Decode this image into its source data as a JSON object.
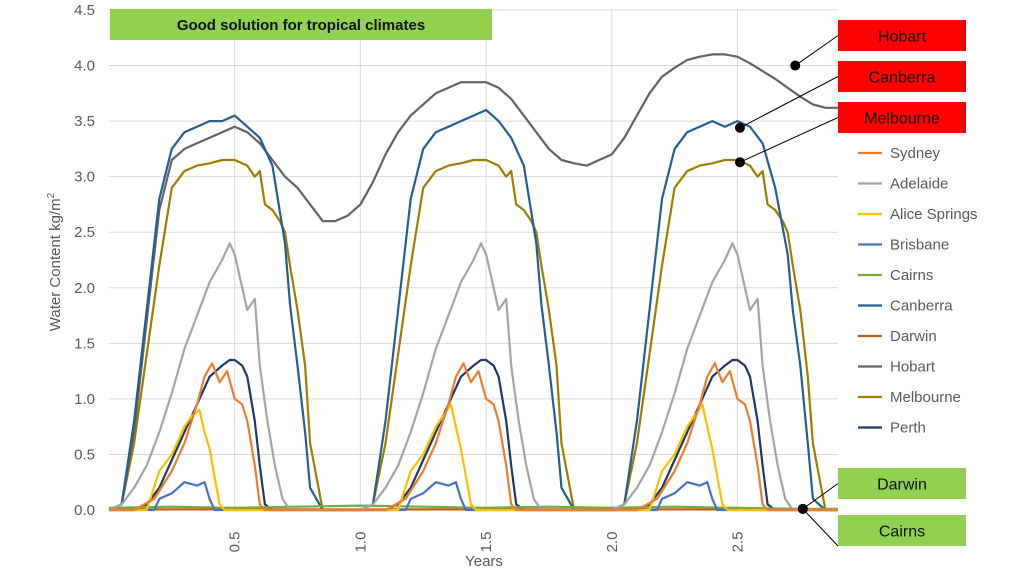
{
  "chart_data": {
    "type": "line",
    "title": "Good solution for tropical climates",
    "xlabel": "Years",
    "ylabel": "Water Content kg/m",
    "ylabel_sup": "2",
    "xlim": [
      0,
      2.9
    ],
    "ylim": [
      0,
      4.5
    ],
    "xticks": [
      "0.5",
      "1.0",
      "1.5",
      "2.0",
      "2.5"
    ],
    "yticks": [
      "0.0",
      "0.5",
      "1.0",
      "1.5",
      "2.0",
      "2.5",
      "3.0",
      "3.5",
      "4.0",
      "4.5"
    ],
    "grid": true,
    "legend_position": "right",
    "series": [
      {
        "name": "Sydney",
        "color": "#ED7D31",
        "x": [
          0.0,
          0.1,
          0.18,
          0.25,
          0.3,
          0.35,
          0.38,
          0.41,
          0.44,
          0.47,
          0.5,
          0.53,
          0.55,
          0.58,
          0.6,
          0.62,
          0.65,
          0.7,
          1.0,
          1.1,
          1.18,
          1.25,
          1.3,
          1.35,
          1.38,
          1.41,
          1.44,
          1.47,
          1.5,
          1.53,
          1.55,
          1.58,
          1.6,
          1.62,
          1.65,
          1.7,
          2.0,
          2.1,
          2.18,
          2.25,
          2.3,
          2.35,
          2.38,
          2.41,
          2.44,
          2.47,
          2.5,
          2.53,
          2.55,
          2.58,
          2.6,
          2.62,
          2.65,
          2.7,
          2.9
        ],
        "y": [
          0,
          0,
          0.1,
          0.35,
          0.6,
          0.95,
          1.2,
          1.32,
          1.15,
          1.25,
          1.0,
          0.95,
          0.8,
          0.4,
          0.05,
          0,
          0,
          0,
          0,
          0,
          0.1,
          0.35,
          0.6,
          0.95,
          1.2,
          1.32,
          1.15,
          1.25,
          1.0,
          0.95,
          0.8,
          0.4,
          0.05,
          0,
          0,
          0,
          0,
          0,
          0.1,
          0.35,
          0.6,
          0.95,
          1.2,
          1.32,
          1.15,
          1.25,
          1.0,
          0.95,
          0.8,
          0.4,
          0.05,
          0,
          0,
          0,
          0
        ]
      },
      {
        "name": "Adelaide",
        "color": "#A5A5A5",
        "x": [
          0.0,
          0.05,
          0.1,
          0.15,
          0.2,
          0.25,
          0.3,
          0.35,
          0.4,
          0.45,
          0.48,
          0.5,
          0.55,
          0.58,
          0.6,
          0.63,
          0.66,
          0.69,
          0.72,
          0.75,
          1.0,
          1.05,
          1.1,
          1.15,
          1.2,
          1.25,
          1.3,
          1.35,
          1.4,
          1.45,
          1.48,
          1.5,
          1.55,
          1.58,
          1.6,
          1.63,
          1.66,
          1.69,
          1.72,
          1.75,
          2.0,
          2.05,
          2.1,
          2.15,
          2.2,
          2.25,
          2.3,
          2.35,
          2.4,
          2.45,
          2.48,
          2.5,
          2.55,
          2.58,
          2.6,
          2.63,
          2.66,
          2.69,
          2.72,
          2.75,
          2.9
        ],
        "y": [
          0,
          0.05,
          0.2,
          0.4,
          0.7,
          1.05,
          1.45,
          1.75,
          2.05,
          2.25,
          2.4,
          2.3,
          1.8,
          1.9,
          1.3,
          0.8,
          0.4,
          0.1,
          0,
          0,
          0,
          0.05,
          0.2,
          0.4,
          0.7,
          1.05,
          1.45,
          1.75,
          2.05,
          2.25,
          2.4,
          2.3,
          1.8,
          1.9,
          1.3,
          0.8,
          0.4,
          0.1,
          0,
          0,
          0,
          0.05,
          0.2,
          0.4,
          0.7,
          1.05,
          1.45,
          1.75,
          2.05,
          2.25,
          2.4,
          2.3,
          1.8,
          1.9,
          1.3,
          0.8,
          0.4,
          0.1,
          0,
          0,
          0
        ]
      },
      {
        "name": "Alice Springs",
        "color": "#FFC000",
        "x": [
          0.0,
          0.15,
          0.2,
          0.25,
          0.3,
          0.33,
          0.36,
          0.38,
          0.4,
          0.42,
          0.44,
          0.46,
          0.5,
          1.0,
          1.15,
          1.2,
          1.25,
          1.3,
          1.33,
          1.36,
          1.38,
          1.4,
          1.42,
          1.44,
          1.46,
          1.5,
          2.0,
          2.15,
          2.2,
          2.25,
          2.3,
          2.33,
          2.36,
          2.38,
          2.4,
          2.42,
          2.44,
          2.46,
          2.5,
          2.9
        ],
        "y": [
          0,
          0,
          0.35,
          0.5,
          0.75,
          0.85,
          0.9,
          0.7,
          0.55,
          0.3,
          0.05,
          0,
          0,
          0,
          0,
          0.35,
          0.5,
          0.75,
          0.85,
          0.95,
          0.75,
          0.55,
          0.3,
          0.05,
          0,
          0,
          0,
          0,
          0.35,
          0.5,
          0.75,
          0.85,
          0.95,
          0.75,
          0.55,
          0.3,
          0.05,
          0,
          0,
          0
        ]
      },
      {
        "name": "Brisbane",
        "color": "#4472C4",
        "x": [
          0.0,
          0.18,
          0.2,
          0.25,
          0.3,
          0.35,
          0.38,
          0.4,
          0.42,
          0.45,
          1.0,
          1.18,
          1.2,
          1.25,
          1.3,
          1.35,
          1.38,
          1.4,
          1.42,
          1.45,
          2.0,
          2.18,
          2.2,
          2.25,
          2.3,
          2.35,
          2.38,
          2.4,
          2.42,
          2.45,
          2.9
        ],
        "y": [
          0,
          0,
          0.1,
          0.15,
          0.25,
          0.22,
          0.25,
          0.1,
          0,
          0,
          0,
          0,
          0.1,
          0.15,
          0.25,
          0.22,
          0.25,
          0.1,
          0,
          0,
          0,
          0,
          0.1,
          0.15,
          0.25,
          0.22,
          0.25,
          0.1,
          0,
          0,
          0
        ]
      },
      {
        "name": "Cairns",
        "color": "#70AD47",
        "x": [
          0.0,
          0.25,
          0.5,
          0.75,
          1.0,
          1.25,
          1.5,
          1.75,
          2.0,
          2.25,
          2.5,
          2.75,
          2.9
        ],
        "y": [
          0.02,
          0.03,
          0.02,
          0.03,
          0.04,
          0.03,
          0.02,
          0.03,
          0.02,
          0.03,
          0.02,
          0.01,
          0.01
        ]
      },
      {
        "name": "Canberra",
        "color": "#255E91",
        "x": [
          0.0,
          0.05,
          0.1,
          0.15,
          0.2,
          0.25,
          0.3,
          0.35,
          0.4,
          0.45,
          0.5,
          0.55,
          0.6,
          0.65,
          0.7,
          0.72,
          0.75,
          0.78,
          0.8,
          0.85,
          1.0,
          1.05,
          1.1,
          1.15,
          1.2,
          1.25,
          1.3,
          1.35,
          1.4,
          1.45,
          1.5,
          1.55,
          1.6,
          1.65,
          1.7,
          1.72,
          1.75,
          1.78,
          1.8,
          1.85,
          2.0,
          2.05,
          2.1,
          2.15,
          2.2,
          2.25,
          2.3,
          2.35,
          2.4,
          2.45,
          2.5,
          2.55,
          2.6,
          2.65,
          2.7,
          2.72,
          2.75,
          2.78,
          2.8,
          2.85,
          2.9
        ],
        "y": [
          0,
          0.05,
          0.8,
          1.8,
          2.8,
          3.25,
          3.4,
          3.45,
          3.5,
          3.5,
          3.55,
          3.45,
          3.35,
          3.1,
          2.4,
          1.85,
          1.3,
          0.7,
          0.2,
          0,
          0,
          0.05,
          0.8,
          1.8,
          2.8,
          3.25,
          3.4,
          3.45,
          3.5,
          3.55,
          3.6,
          3.5,
          3.35,
          3.1,
          2.4,
          1.85,
          1.3,
          0.7,
          0.2,
          0,
          0,
          0.05,
          0.8,
          1.8,
          2.8,
          3.25,
          3.4,
          3.45,
          3.5,
          3.45,
          3.5,
          3.45,
          3.3,
          2.9,
          2.3,
          1.8,
          1.3,
          0.6,
          0.1,
          0,
          0
        ]
      },
      {
        "name": "Darwin",
        "color": "#C55A11",
        "x": [
          0.0,
          0.5,
          1.0,
          1.5,
          2.0,
          2.5,
          2.9
        ],
        "y": [
          0.005,
          0.005,
          0.005,
          0.005,
          0.005,
          0.005,
          0.005
        ]
      },
      {
        "name": "Hobart",
        "color": "#636363",
        "x": [
          0.0,
          0.05,
          0.1,
          0.15,
          0.2,
          0.25,
          0.3,
          0.35,
          0.4,
          0.45,
          0.5,
          0.55,
          0.6,
          0.65,
          0.7,
          0.75,
          0.8,
          0.85,
          0.9,
          0.95,
          1.0,
          1.05,
          1.1,
          1.15,
          1.2,
          1.25,
          1.3,
          1.35,
          1.4,
          1.45,
          1.5,
          1.55,
          1.6,
          1.65,
          1.7,
          1.75,
          1.8,
          1.85,
          1.9,
          1.95,
          2.0,
          2.05,
          2.1,
          2.15,
          2.2,
          2.25,
          2.3,
          2.35,
          2.4,
          2.45,
          2.5,
          2.55,
          2.6,
          2.65,
          2.7,
          2.75,
          2.8,
          2.85,
          2.9
        ],
        "y": [
          0,
          0.05,
          0.7,
          1.7,
          2.7,
          3.15,
          3.25,
          3.3,
          3.35,
          3.4,
          3.45,
          3.4,
          3.3,
          3.15,
          3.0,
          2.9,
          2.75,
          2.6,
          2.6,
          2.65,
          2.75,
          2.95,
          3.2,
          3.4,
          3.55,
          3.65,
          3.75,
          3.8,
          3.85,
          3.85,
          3.85,
          3.8,
          3.7,
          3.55,
          3.4,
          3.25,
          3.15,
          3.12,
          3.1,
          3.15,
          3.2,
          3.35,
          3.55,
          3.75,
          3.9,
          3.98,
          4.05,
          4.08,
          4.1,
          4.1,
          4.08,
          4.02,
          3.95,
          3.88,
          3.8,
          3.72,
          3.65,
          3.62,
          3.62
        ]
      },
      {
        "name": "Melbourne",
        "color": "#9E7D00",
        "x": [
          0.0,
          0.05,
          0.1,
          0.15,
          0.2,
          0.25,
          0.3,
          0.35,
          0.4,
          0.45,
          0.5,
          0.55,
          0.58,
          0.6,
          0.62,
          0.65,
          0.68,
          0.7,
          0.72,
          0.75,
          0.78,
          0.8,
          0.85,
          1.0,
          1.05,
          1.1,
          1.15,
          1.2,
          1.25,
          1.3,
          1.35,
          1.4,
          1.45,
          1.5,
          1.55,
          1.58,
          1.6,
          1.62,
          1.65,
          1.68,
          1.7,
          1.72,
          1.75,
          1.78,
          1.8,
          1.85,
          2.0,
          2.05,
          2.1,
          2.15,
          2.2,
          2.25,
          2.3,
          2.35,
          2.4,
          2.45,
          2.5,
          2.55,
          2.58,
          2.6,
          2.62,
          2.65,
          2.68,
          2.7,
          2.72,
          2.75,
          2.78,
          2.8,
          2.85,
          2.9
        ],
        "y": [
          0,
          0.05,
          0.6,
          1.4,
          2.2,
          2.9,
          3.05,
          3.1,
          3.12,
          3.15,
          3.15,
          3.1,
          3.0,
          3.05,
          2.75,
          2.7,
          2.6,
          2.5,
          2.2,
          1.8,
          1.3,
          0.6,
          0,
          0,
          0.05,
          0.6,
          1.4,
          2.2,
          2.9,
          3.05,
          3.1,
          3.12,
          3.15,
          3.15,
          3.1,
          3.0,
          3.05,
          2.75,
          2.7,
          2.6,
          2.5,
          2.2,
          1.8,
          1.3,
          0.6,
          0,
          0,
          0.05,
          0.6,
          1.4,
          2.2,
          2.9,
          3.05,
          3.1,
          3.12,
          3.15,
          3.15,
          3.1,
          3.0,
          3.05,
          2.75,
          2.7,
          2.6,
          2.5,
          2.2,
          1.8,
          1.2,
          0.6,
          0,
          0
        ]
      },
      {
        "name": "Perth",
        "color": "#203864",
        "x": [
          0.0,
          0.1,
          0.15,
          0.2,
          0.25,
          0.3,
          0.35,
          0.4,
          0.45,
          0.48,
          0.5,
          0.53,
          0.55,
          0.58,
          0.6,
          0.62,
          0.65,
          0.7,
          1.0,
          1.1,
          1.15,
          1.2,
          1.25,
          1.3,
          1.35,
          1.4,
          1.45,
          1.48,
          1.5,
          1.53,
          1.55,
          1.58,
          1.6,
          1.62,
          1.65,
          1.7,
          2.0,
          2.1,
          2.15,
          2.2,
          2.25,
          2.3,
          2.35,
          2.4,
          2.45,
          2.48,
          2.5,
          2.53,
          2.55,
          2.58,
          2.6,
          2.62,
          2.65,
          2.7,
          2.9
        ],
        "y": [
          0,
          0,
          0.05,
          0.2,
          0.45,
          0.7,
          0.95,
          1.2,
          1.3,
          1.35,
          1.35,
          1.3,
          1.2,
          0.8,
          0.4,
          0.05,
          0,
          0,
          0,
          0,
          0.05,
          0.2,
          0.45,
          0.7,
          0.95,
          1.2,
          1.3,
          1.35,
          1.35,
          1.3,
          1.2,
          0.8,
          0.4,
          0.05,
          0,
          0,
          0,
          0,
          0.05,
          0.2,
          0.45,
          0.7,
          0.95,
          1.2,
          1.3,
          1.35,
          1.35,
          1.3,
          1.2,
          0.8,
          0.4,
          0.05,
          0,
          0,
          0
        ]
      }
    ],
    "annotations": [
      {
        "label": "Hobart",
        "color": "#FF0000",
        "series": "Hobart",
        "point": [
          2.73,
          4.0
        ]
      },
      {
        "label": "Canberra",
        "color": "#FF0000",
        "series": "Canberra",
        "point": [
          2.51,
          3.44
        ]
      },
      {
        "label": "Melbourne",
        "color": "#FF0000",
        "series": "Melbourne",
        "point": [
          2.51,
          3.13
        ]
      },
      {
        "label": "Darwin",
        "color": "#92D050",
        "series": "Darwin",
        "point": [
          2.76,
          0.01
        ]
      },
      {
        "label": "Cairns",
        "color": "#92D050",
        "series": "Cairns",
        "point": [
          2.76,
          0.01
        ]
      }
    ],
    "title_color": "#92D050"
  }
}
